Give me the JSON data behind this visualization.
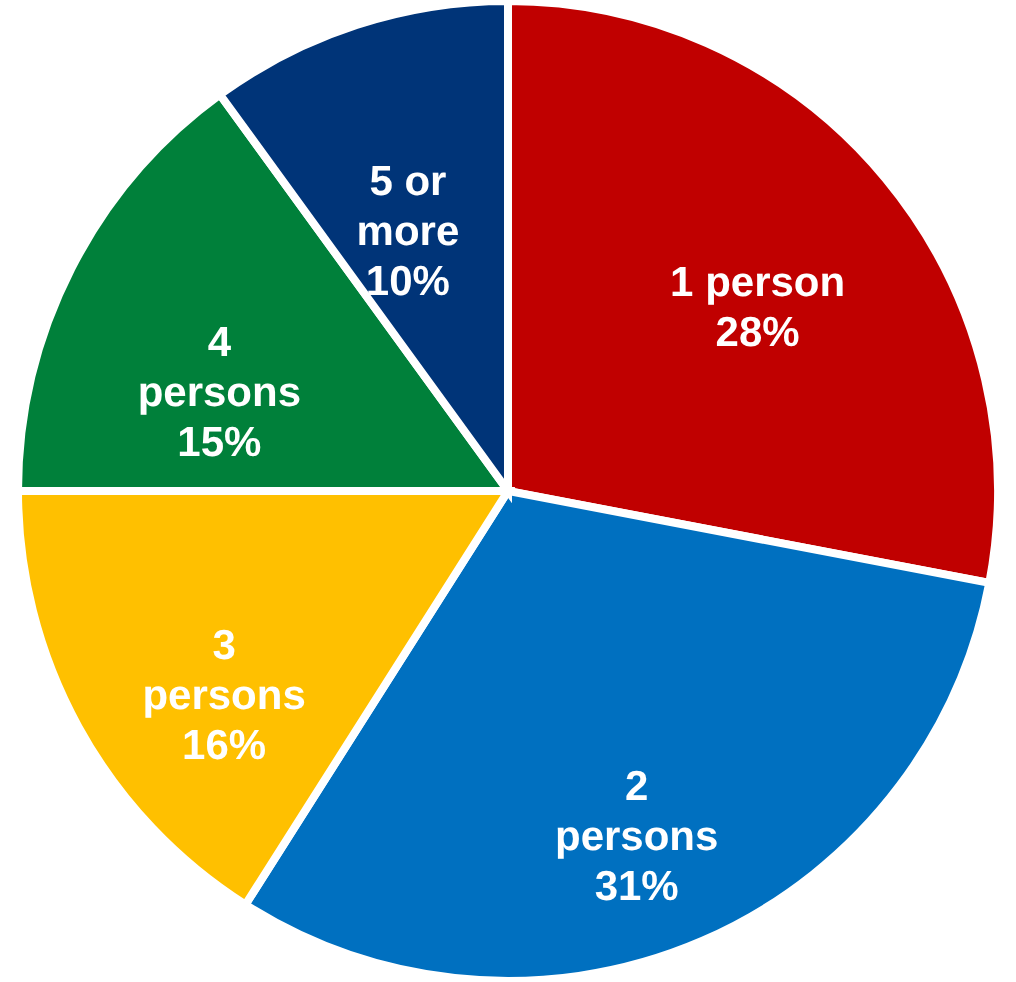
{
  "chart_data": {
    "type": "pie",
    "categories": [
      "1 person",
      "2 persons",
      "3 persons",
      "4 persons",
      "5 or more"
    ],
    "values": [
      28,
      31,
      16,
      15,
      10
    ],
    "colors": [
      "#c00000",
      "#0070c0",
      "#ffc000",
      "#00803a",
      "#003478"
    ],
    "value_labels": [
      "28%",
      "31%",
      "16%",
      "15%",
      "10%"
    ],
    "legend": false
  }
}
